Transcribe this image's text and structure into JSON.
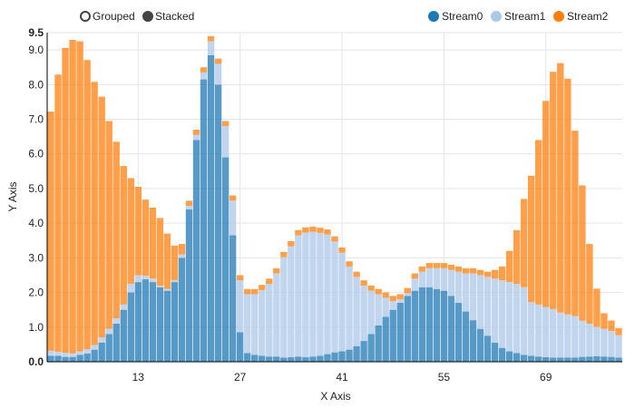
{
  "controls": {
    "grouped_label": "Grouped",
    "stacked_label": "Stacked",
    "selected": "stacked"
  },
  "chart_data": {
    "type": "bar",
    "mode": "stacked",
    "xlabel": "X Axis",
    "ylabel": "Y Axis",
    "xlim": [
      1,
      79
    ],
    "ylim": [
      0,
      9.5
    ],
    "x_ticks": [
      13,
      27,
      41,
      55,
      69
    ],
    "y_ticks": [
      "0.0",
      "1.0",
      "2.0",
      "3.0",
      "4.0",
      "5.0",
      "6.0",
      "7.0",
      "8.0",
      "9.0",
      "9.5"
    ],
    "grid": true,
    "legend_position": "top-right",
    "colors": [
      "#1f77b4",
      "#aec7e8",
      "#ff7f0e"
    ],
    "x": [
      1,
      2,
      3,
      4,
      5,
      6,
      7,
      8,
      9,
      10,
      11,
      12,
      13,
      14,
      15,
      16,
      17,
      18,
      19,
      20,
      21,
      22,
      23,
      24,
      25,
      26,
      27,
      28,
      29,
      30,
      31,
      32,
      33,
      34,
      35,
      36,
      37,
      38,
      39,
      40,
      41,
      42,
      43,
      44,
      45,
      46,
      47,
      48,
      49,
      50,
      51,
      52,
      53,
      54,
      55,
      56,
      57,
      58,
      59,
      60,
      61,
      62,
      63,
      64,
      65,
      66,
      67,
      68,
      69,
      70,
      71,
      72,
      73,
      74,
      75,
      76,
      77,
      78,
      79
    ],
    "series": [
      {
        "name": "Stream0",
        "values": [
          0.17,
          0.17,
          0.14,
          0.14,
          0.2,
          0.24,
          0.35,
          0.55,
          0.8,
          1.1,
          1.5,
          2.0,
          2.3,
          2.38,
          2.3,
          2.15,
          2.05,
          2.3,
          3.0,
          4.4,
          6.4,
          8.15,
          8.85,
          8.0,
          5.9,
          3.65,
          0.85,
          0.25,
          0.2,
          0.17,
          0.15,
          0.15,
          0.12,
          0.13,
          0.15,
          0.13,
          0.15,
          0.17,
          0.22,
          0.27,
          0.3,
          0.35,
          0.45,
          0.6,
          0.8,
          1.05,
          1.3,
          1.5,
          1.7,
          1.9,
          2.05,
          2.15,
          2.15,
          2.1,
          2.05,
          1.9,
          1.7,
          1.45,
          1.2,
          0.95,
          0.75,
          0.55,
          0.4,
          0.3,
          0.25,
          0.2,
          0.17,
          0.15,
          0.13,
          0.12,
          0.12,
          0.12,
          0.12,
          0.14,
          0.15,
          0.16,
          0.15,
          0.14,
          0.12
        ]
      },
      {
        "name": "Stream1",
        "values": [
          0.15,
          0.12,
          0.12,
          0.1,
          0.1,
          0.12,
          0.13,
          0.15,
          0.15,
          0.15,
          0.15,
          0.25,
          0.2,
          0.1,
          0.1,
          0.05,
          0.05,
          0.05,
          0.1,
          0.1,
          0.15,
          0.2,
          0.4,
          0.6,
          0.9,
          1.0,
          1.5,
          1.7,
          1.75,
          1.9,
          2.1,
          2.4,
          2.9,
          3.2,
          3.5,
          3.6,
          3.6,
          3.55,
          3.45,
          3.2,
          2.85,
          2.4,
          2.0,
          1.6,
          1.25,
          0.9,
          0.55,
          0.25,
          0.1,
          0.08,
          0.35,
          0.45,
          0.55,
          0.6,
          0.65,
          0.75,
          0.9,
          1.1,
          1.35,
          1.55,
          1.7,
          1.85,
          1.95,
          2.0,
          2.0,
          1.95,
          1.55,
          1.5,
          1.45,
          1.4,
          1.3,
          1.25,
          1.2,
          1.05,
          0.95,
          0.85,
          0.8,
          0.75,
          0.65
        ]
      },
      {
        "name": "Stream2",
        "values": [
          6.9,
          8.0,
          8.8,
          9.05,
          8.95,
          8.35,
          7.6,
          6.95,
          6.0,
          5.1,
          4.0,
          3.05,
          2.55,
          2.2,
          2.05,
          1.95,
          1.6,
          1.0,
          0.3,
          0.15,
          0.15,
          0.15,
          0.15,
          0.15,
          0.15,
          0.15,
          0.15,
          0.15,
          0.15,
          0.15,
          0.15,
          0.15,
          0.15,
          0.15,
          0.15,
          0.15,
          0.15,
          0.15,
          0.15,
          0.15,
          0.15,
          0.15,
          0.15,
          0.15,
          0.15,
          0.15,
          0.15,
          0.15,
          0.15,
          0.15,
          0.15,
          0.15,
          0.15,
          0.15,
          0.15,
          0.15,
          0.15,
          0.15,
          0.15,
          0.15,
          0.15,
          0.25,
          0.4,
          0.9,
          1.55,
          2.55,
          3.65,
          4.75,
          5.95,
          6.85,
          7.2,
          6.8,
          5.35,
          3.9,
          2.3,
          1.1,
          0.45,
          0.3,
          0.2
        ]
      }
    ]
  }
}
